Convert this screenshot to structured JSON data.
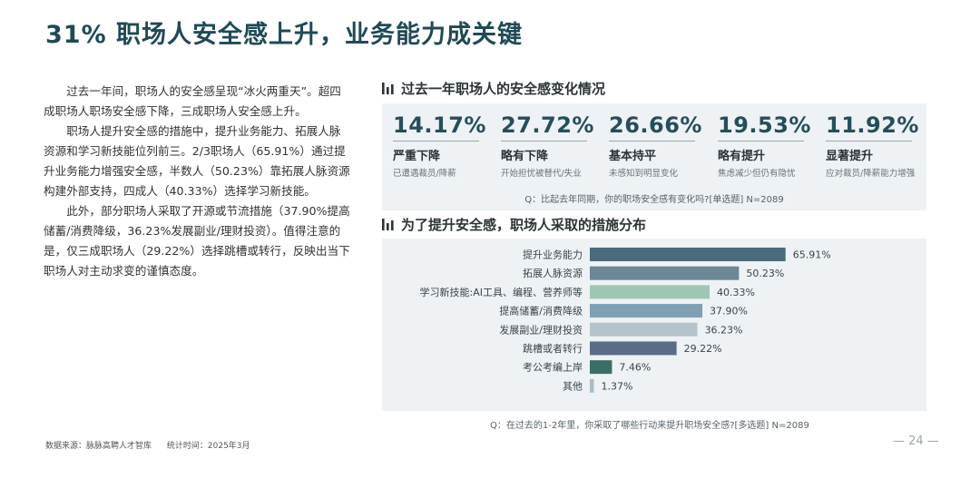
{
  "title": "31% 职场人安全感上升，业务能力成关键",
  "paragraphs": [
    "过去一年间，职场人的安全感呈现“冰火两重天”。超四成职场人职场安全感下降，三成职场人安全感上升。",
    "职场人提升安全感的措施中，提升业务能力、拓展人脉资源和学习新技能位列前三。2/3职场人（65.91%）通过提升业务能力增强安全感，半数人（50.23%）靠拓展人脉资源构建外部支持，四成人（40.33%）选择学习新技能。",
    "此外，部分职场人采取了开源或节流措施（37.90%提高储蓄/消费降级，36.23%发展副业/理财投资）。值得注意的是，仅三成职场人（29.22%）选择跳槽或转行，反映出当下职场人对主动求变的谨慎态度。"
  ],
  "section1": {
    "heading": "过去一年职场人的安全感变化情况",
    "question": "Q：比起去年同期，你的职场安全感有变化吗?[单选题]    N=2089"
  },
  "section2": {
    "heading": "为了提升安全感，职场人采取的措施分布",
    "question": "Q：在过去的1-2年里，你采取了哪些行动来提升职场安全感?[多选题]    N=2089"
  },
  "footer": {
    "source": "数据来源：脉脉高聘人才智库",
    "time": "统计时间：2025年3月",
    "page": "— 24 —"
  },
  "colors": {
    "title": "#1f4a55",
    "panel_bg": "#eef2f4",
    "bar_dark": "#4b6a7b",
    "bar_slate": "#6d8797",
    "bar_green_light": "#9fc6b3",
    "bar_blue_gray": "#7f9fb3",
    "bar_light_gray": "#b5c4cc",
    "bar_deep_slate": "#5a6c86",
    "bar_teal_dark": "#3b6e66",
    "bar_pale": "#a9bcc8"
  },
  "chart_data": [
    {
      "type": "table",
      "items": [
        {
          "value": "14.17%",
          "label": "严重下降",
          "desc": "已遭遇裁员/降薪"
        },
        {
          "value": "27.72%",
          "label": "略有下降",
          "desc": "开始担忧被替代/失业"
        },
        {
          "value": "26.66%",
          "label": "基本持平",
          "desc": "未感知到明显变化"
        },
        {
          "value": "19.53%",
          "label": "略有提升",
          "desc": "焦虑减少但仍有隐忧"
        },
        {
          "value": "11.92%",
          "label": "显著提升",
          "desc": "应对裁员/降薪能力增强"
        }
      ]
    },
    {
      "type": "bar",
      "orientation": "horizontal",
      "categories": [
        "提升业务能力",
        "拓展人脉资源",
        "学习新技能:AI工具、编程、营养师等",
        "提高储蓄/消费降级",
        "发展副业/理财投资",
        "跳槽或者转行",
        "考公考编上岸",
        "其他"
      ],
      "values": [
        65.91,
        50.23,
        40.33,
        37.9,
        36.23,
        29.22,
        7.46,
        1.37
      ],
      "value_labels": [
        "65.91%",
        "50.23%",
        "40.33%",
        "37.90%",
        "36.23%",
        "29.22%",
        "7.46%",
        "1.37%"
      ],
      "colors": [
        "#4b6a7b",
        "#6d8797",
        "#9fc6b3",
        "#7f9fb3",
        "#b5c4cc",
        "#5a6c86",
        "#3b6e66",
        "#a9bcc8"
      ],
      "xlim": [
        0,
        66
      ]
    }
  ]
}
